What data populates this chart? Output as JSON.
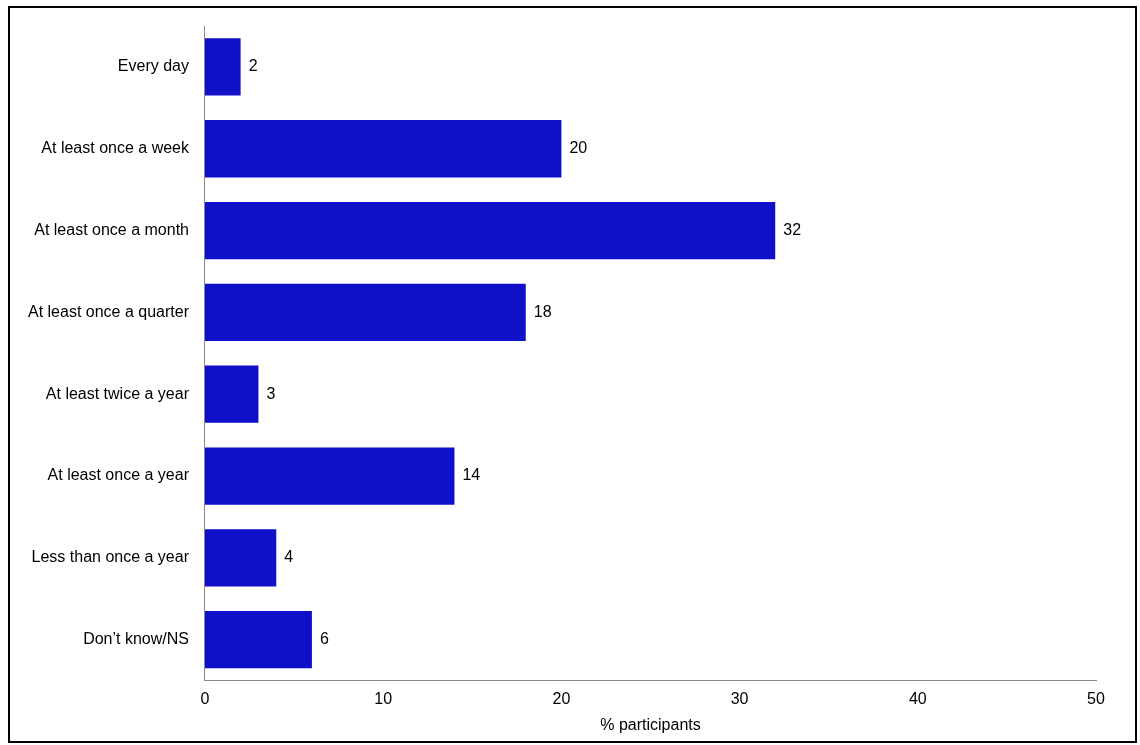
{
  "chart_data": {
    "type": "bar",
    "orientation": "horizontal",
    "categories": [
      "Every day",
      "At least once a week",
      "At least once a month",
      "At least once a quarter",
      "At least twice a year",
      "At least once a year",
      "Less than once a year",
      "Don’t know/NS"
    ],
    "values": [
      2,
      20,
      32,
      18,
      3,
      14,
      4,
      6
    ],
    "color": "#1010c8",
    "xlim": [
      0,
      50
    ],
    "xticks": [
      0,
      10,
      20,
      30,
      40,
      50
    ],
    "xlabel": "% participants",
    "data_labels": true,
    "grid": false,
    "legend": false
  }
}
